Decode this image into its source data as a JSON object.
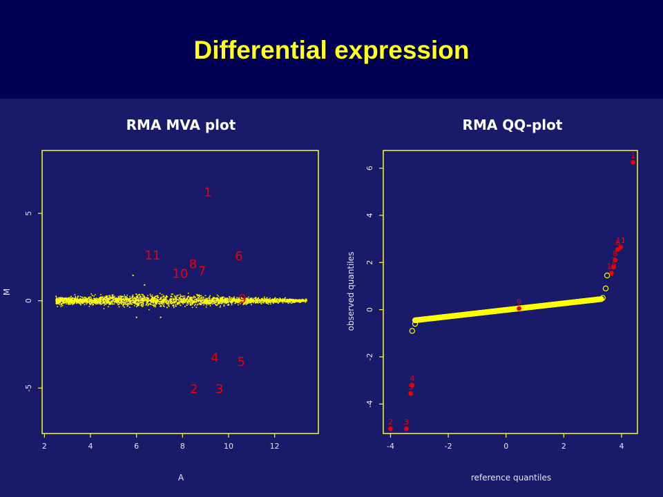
{
  "slide": {
    "title": "Differential expression"
  },
  "colors": {
    "header_bg": "#000055",
    "body_bg": "#1a1a6a",
    "axis": "#ffff22",
    "cloud": "#ffff00",
    "highlight": "#ee0000",
    "title_text": "#ffff22"
  },
  "chart_data": [
    {
      "type": "scatter",
      "title": "RMA MVA plot",
      "xlabel": "A",
      "ylabel": "M",
      "xlim": [
        1.9,
        13.9
      ],
      "ylim": [
        -7.6,
        8.6
      ],
      "xticks": [
        2,
        4,
        6,
        8,
        10,
        12
      ],
      "yticks": [
        -5,
        0,
        5
      ],
      "background_cloud": {
        "x_range": [
          2.5,
          13.4
        ],
        "y_center": 0,
        "y_spread": 0.45
      },
      "stray_points": [
        {
          "x": 5.85,
          "y": 1.45
        },
        {
          "x": 6.35,
          "y": 0.9
        },
        {
          "x": 6.0,
          "y": -0.95
        },
        {
          "x": 7.05,
          "y": -0.95
        }
      ],
      "labeled_points": [
        {
          "label": "1",
          "x": 9.1,
          "y": 6.2
        },
        {
          "label": "11",
          "x": 6.7,
          "y": 2.6
        },
        {
          "label": "6",
          "x": 10.45,
          "y": 2.55
        },
        {
          "label": "8",
          "x": 8.45,
          "y": 2.1
        },
        {
          "label": "7",
          "x": 8.85,
          "y": 1.7
        },
        {
          "label": "10",
          "x": 7.9,
          "y": 1.55
        },
        {
          "label": "9",
          "x": 10.6,
          "y": 0.1
        },
        {
          "label": "4",
          "x": 9.4,
          "y": -3.25
        },
        {
          "label": "5",
          "x": 10.55,
          "y": -3.5
        },
        {
          "label": "2",
          "x": 8.5,
          "y": -5.05
        },
        {
          "label": "3",
          "x": 9.6,
          "y": -5.05
        }
      ]
    },
    {
      "type": "scatter",
      "title": "RMA QQ-plot",
      "xlabel": "reference quantiles",
      "ylabel": "observed quantiles",
      "xlim": [
        -4.25,
        4.55
      ],
      "ylim": [
        -5.25,
        6.75
      ],
      "xticks": [
        -4,
        -2,
        0,
        2,
        4
      ],
      "yticks": [
        -4,
        -2,
        0,
        2,
        4,
        6
      ],
      "background_series": {
        "x_range": [
          -3.15,
          3.3
        ],
        "y_at_start": -0.45,
        "y_at_end": 0.45
      },
      "open_points": [
        {
          "x": -3.25,
          "y": -0.9
        },
        {
          "x": -3.15,
          "y": -0.6
        },
        {
          "x": 3.35,
          "y": 0.5
        },
        {
          "x": 3.45,
          "y": 0.9
        },
        {
          "x": 3.5,
          "y": 1.45
        }
      ],
      "labeled_points": [
        {
          "label": "1",
          "x": 4.4,
          "y": 6.25
        },
        {
          "label": "11",
          "x": 3.97,
          "y": 2.65
        },
        {
          "label": "6",
          "x": 3.87,
          "y": 2.55
        },
        {
          "label": "8",
          "x": 3.78,
          "y": 2.1
        },
        {
          "label": "7",
          "x": 3.72,
          "y": 1.8
        },
        {
          "label": "10",
          "x": 3.65,
          "y": 1.55
        },
        {
          "label": "9",
          "x": 0.45,
          "y": 0.05
        },
        {
          "label": "4",
          "x": -3.25,
          "y": -3.2
        },
        {
          "label": "5",
          "x": -3.3,
          "y": -3.55
        },
        {
          "label": "2",
          "x": -4.0,
          "y": -5.05
        },
        {
          "label": "3",
          "x": -3.45,
          "y": -5.05
        }
      ]
    }
  ]
}
